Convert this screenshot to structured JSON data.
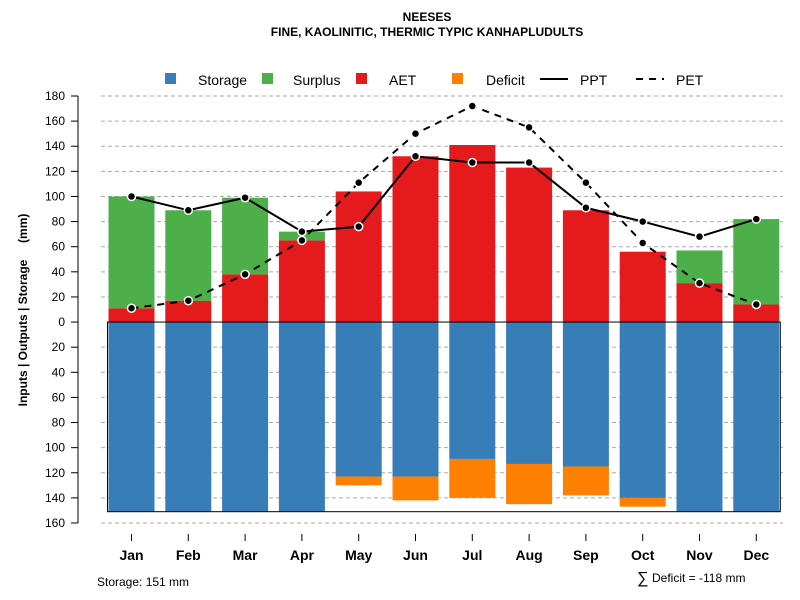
{
  "chart_data": {
    "type": "bar",
    "title": "NEESES",
    "subtitle": "FINE, KAOLINITIC, THERMIC TYPIC KANHAPLUDULTS",
    "ylabel": "Inputs | Outputs | Storage     (mm)",
    "ylim": [
      -160,
      180
    ],
    "yticks": [
      180,
      160,
      140,
      120,
      100,
      80,
      60,
      40,
      20,
      0,
      -20,
      -40,
      -60,
      -80,
      -100,
      -120,
      -140,
      -160
    ],
    "ytick_labels": [
      "180",
      "160",
      "140",
      "120",
      "100",
      "80",
      "60",
      "40",
      "20",
      "0",
      "20",
      "40",
      "60",
      "80",
      "100",
      "120",
      "140",
      "160"
    ],
    "grid": true,
    "legend_position": "top",
    "categories": [
      "Jan",
      "Feb",
      "Mar",
      "Apr",
      "May",
      "Jun",
      "Jul",
      "Aug",
      "Sep",
      "Oct",
      "Nov",
      "Dec"
    ],
    "series": [
      {
        "name": "Storage",
        "kind": "bar",
        "color": "#377EB8",
        "values": [
          151,
          151,
          151,
          151,
          123,
          123,
          109,
          113,
          115,
          140,
          151,
          151
        ]
      },
      {
        "name": "Surplus",
        "kind": "bar",
        "color": "#4DAF4A",
        "values": [
          89,
          72,
          61,
          7,
          0,
          0,
          0,
          0,
          0,
          0,
          26,
          68
        ]
      },
      {
        "name": "AET",
        "kind": "bar",
        "color": "#E41A1C",
        "values": [
          11,
          17,
          38,
          65,
          104,
          132,
          141,
          123,
          89,
          56,
          31,
          14
        ]
      },
      {
        "name": "Deficit",
        "kind": "bar",
        "color": "#FF7F00",
        "values": [
          0,
          0,
          0,
          0,
          7,
          19,
          31,
          32,
          23,
          7,
          0,
          0
        ]
      },
      {
        "name": "PPT",
        "kind": "line",
        "style": "solid",
        "color": "#000000",
        "values": [
          100,
          89,
          99,
          72,
          76,
          132,
          127,
          127,
          91,
          80,
          68,
          82
        ]
      },
      {
        "name": "PET",
        "kind": "line",
        "style": "dashed",
        "color": "#000000",
        "values": [
          11,
          17,
          38,
          65,
          111,
          150,
          172,
          155,
          111,
          63,
          31,
          14
        ]
      }
    ],
    "storage_capacity": 151,
    "annotations": {
      "storage": "Storage: 151 mm",
      "deficit_symbol": "∑",
      "deficit": "Deficit = -118 mm"
    }
  }
}
